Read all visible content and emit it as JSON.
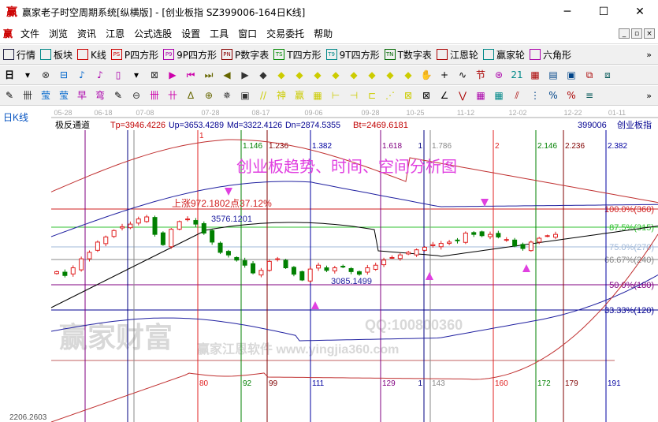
{
  "window": {
    "title": "赢家老子时空周期系统[纵横版] - [创业板指  SZ399006-164日K线]",
    "logo": "赢",
    "minimize": "─",
    "maximize": "☐",
    "close": "✕"
  },
  "menu": {
    "logo": "赢",
    "items": [
      "文件",
      "浏览",
      "资讯",
      "江恩",
      "公式选股",
      "设置",
      "工具",
      "窗口",
      "交易委托",
      "帮助"
    ],
    "mdi": [
      "_",
      "▫",
      "×"
    ]
  },
  "toolbar1": {
    "items": [
      {
        "icon": "grid-icon",
        "label": "行情",
        "color": "#224"
      },
      {
        "icon": "blocks-icon",
        "label": "板块",
        "color": "#088"
      },
      {
        "icon": "kline-icon",
        "label": "K线",
        "color": "#c00"
      },
      {
        "icon": "PS",
        "label": "P四方形",
        "color": "#c00"
      },
      {
        "icon": "P9",
        "label": "9P四方形",
        "color": "#a0a"
      },
      {
        "icon": "PN",
        "label": "P数字表",
        "color": "#800"
      },
      {
        "icon": "TS",
        "label": "T四方形",
        "color": "#080"
      },
      {
        "icon": "T9",
        "label": "9T四方形",
        "color": "#088"
      },
      {
        "icon": "TN",
        "label": "T数字表",
        "color": "#060"
      },
      {
        "icon": "gann-wheel-icon",
        "label": "江恩轮",
        "color": "#a00"
      },
      {
        "icon": "big-wheel-icon",
        "label": "赢家轮",
        "color": "#088"
      },
      {
        "icon": "hexagon-icon",
        "label": "六角形",
        "color": "#a0a"
      }
    ],
    "more": "»"
  },
  "toolbar2": {
    "period": "日",
    "glyphs": [
      "▾",
      "⊗",
      "⊟",
      "♪",
      "♪",
      "▯",
      "▾",
      "⊠",
      "▶",
      "⏮",
      "⏭",
      "◀",
      "▶",
      "◆",
      "◆",
      "◆",
      "◆",
      "◆",
      "◆",
      "◆",
      "◆",
      "◆",
      "✋",
      "+",
      "∿",
      "节",
      "⊛",
      "21",
      "▦",
      "▤",
      "▣",
      "⧉",
      "⧈"
    ]
  },
  "toolbar3": {
    "glyphs": [
      "✎",
      "卌",
      "莹",
      "莹",
      "早",
      "弯",
      "✎",
      "⊖",
      "卌",
      "卄",
      "∆",
      "⊕",
      "✵",
      "▣",
      "//",
      "神",
      "赢",
      "▦",
      "⊢",
      "⊣",
      "⊏",
      "⋰",
      "⊠",
      "⊠",
      "∠",
      "⋁",
      "▦",
      "▦",
      "⫽",
      "⋮",
      "%",
      "%",
      "≡"
    ],
    "more": "»"
  },
  "chart": {
    "period_label": "日K线",
    "indicator": "极反通道",
    "tp": "Tp=3946.4226",
    "up": "Up=3653.4289",
    "md": "Md=3322.4126",
    "dn": "Dn=2874.5355",
    "bt": "Bt=2469.6181",
    "code": "399006",
    "name": "创业板指",
    "title": "创业板趋势、时间、空间分析图",
    "rise_note": "上涨972.1802点37.12%",
    "high_label": "3576.1201",
    "low_label": "3085.1499",
    "bottom_value": "2206.2603",
    "watermark": [
      "赢家财富",
      "赢家江恩软件 www.yingjia360.com",
      "QQ:100800360"
    ],
    "dates": [
      "05-28",
      "06-18",
      "07-08",
      "07-28",
      "08-17",
      "09-06",
      "09-28",
      "10-25",
      "11-12",
      "12-02",
      "12-22",
      "01-11"
    ],
    "time_lines": [
      {
        "top": "",
        "bottom": "",
        "color": "#800080"
      },
      {
        "top": "",
        "bottom": "",
        "color": "#000080"
      },
      {
        "top": "",
        "bottom": "",
        "color": "#888888"
      },
      {
        "top": "1",
        "bottom": "80",
        "color": "#e02020"
      },
      {
        "top": "1.146",
        "bottom": "92",
        "color": "#008000"
      },
      {
        "top": "1.236",
        "bottom": "99",
        "color": "#800000"
      },
      {
        "top": "1.382",
        "bottom": "111",
        "color": "#0000a0"
      },
      {
        "top": "1.618",
        "bottom": "129",
        "color": "#800080"
      },
      {
        "top": "1",
        "bottom": "1",
        "color": "#000080"
      },
      {
        "top": "1.786",
        "bottom": "143",
        "color": "#888888"
      },
      {
        "top": "2",
        "bottom": "160",
        "color": "#e02020"
      },
      {
        "top": "2.146",
        "bottom": "172",
        "color": "#008000"
      },
      {
        "top": "2.236",
        "bottom": "179",
        "color": "#800000"
      },
      {
        "top": "2.382",
        "bottom": "191",
        "color": "#0000a0"
      }
    ],
    "levels": [
      {
        "label": "100.0%(360)",
        "color": "#d02020"
      },
      {
        "label": "87.5%(315)",
        "color": "#30c030"
      },
      {
        "label": "75.0%(270)",
        "color": "#a0b8d8"
      },
      {
        "label": "66.67%(240)",
        "color": "#888888"
      },
      {
        "label": "50.0%(180)",
        "color": "#800080"
      },
      {
        "label": "33.33%(120)",
        "color": "#000090"
      }
    ],
    "price_path": [
      3150,
      3120,
      3180,
      3250,
      3300,
      3380,
      3420,
      3470,
      3500,
      3520,
      3560,
      3576,
      3440,
      3360,
      3480,
      3540,
      3560,
      3520,
      3450,
      3380,
      3300,
      3280,
      3240,
      3200,
      3140,
      3160,
      3230,
      3250,
      3180,
      3130,
      3085,
      3170,
      3200,
      3160,
      3180,
      3190,
      3150,
      3130,
      3180,
      3200,
      3240,
      3260,
      3280,
      3300,
      3320,
      3340,
      3360,
      3370,
      3380,
      3390,
      3450,
      3440,
      3430,
      3440,
      3420,
      3400,
      3350,
      3330,
      3380,
      3410,
      3430,
      3440
    ],
    "up_color": "#e02020",
    "down_color": "#008000"
  }
}
